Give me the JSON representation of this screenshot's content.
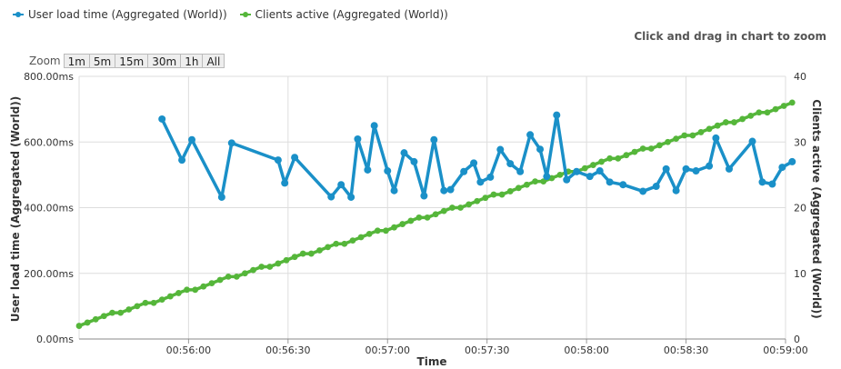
{
  "legend": {
    "series1": "User load time (Aggregated (World))",
    "series2": "Clients active (Aggregated (World))"
  },
  "hint": "Click and drag in chart to zoom",
  "zoom": {
    "label": "Zoom",
    "buttons": [
      "1m",
      "5m",
      "15m",
      "30m",
      "1h",
      "All"
    ]
  },
  "colors": {
    "series1": "#1a90c8",
    "series2": "#55b63a",
    "grid": "#dddddd"
  },
  "chart_data": {
    "type": "line",
    "xlabel": "Time",
    "ylabel_left": "User load time (Aggregated (World))",
    "ylabel_right": "Clients active (Aggregated (World))",
    "x_range": [
      "00:55:27",
      "00:59:00"
    ],
    "x_ticks": [
      "00:56:00",
      "00:56:30",
      "00:57:00",
      "00:57:30",
      "00:58:00",
      "00:58:30",
      "00:59:00"
    ],
    "y_left_ticks": [
      "0.00ms",
      "200.00ms",
      "400.00ms",
      "600.00ms",
      "800.00ms"
    ],
    "y_left_range": [
      0,
      800
    ],
    "y_right_ticks": [
      "0",
      "10",
      "20",
      "30",
      "40"
    ],
    "y_right_range": [
      0,
      40
    ],
    "grid": true,
    "series": [
      {
        "name": "User load time (Aggregated (World))",
        "axis": "left",
        "points": [
          [
            "00:55:52",
            670
          ],
          [
            "00:55:58",
            545
          ],
          [
            "00:56:01",
            607
          ],
          [
            "00:56:10",
            432
          ],
          [
            "00:56:13",
            597
          ],
          [
            "00:56:27",
            545
          ],
          [
            "00:56:29",
            475
          ],
          [
            "00:56:32",
            553
          ],
          [
            "00:56:43",
            433
          ],
          [
            "00:56:46",
            470
          ],
          [
            "00:56:49",
            432
          ],
          [
            "00:56:51",
            609
          ],
          [
            "00:56:54",
            515
          ],
          [
            "00:56:56",
            650
          ],
          [
            "00:57:00",
            512
          ],
          [
            "00:57:02",
            452
          ],
          [
            "00:57:05",
            567
          ],
          [
            "00:57:08",
            540
          ],
          [
            "00:57:11",
            436
          ],
          [
            "00:57:14",
            607
          ],
          [
            "00:57:17",
            452
          ],
          [
            "00:57:19",
            455
          ],
          [
            "00:57:23",
            510
          ],
          [
            "00:57:26",
            536
          ],
          [
            "00:57:28",
            478
          ],
          [
            "00:57:31",
            493
          ],
          [
            "00:57:34",
            577
          ],
          [
            "00:57:37",
            534
          ],
          [
            "00:57:40",
            510
          ],
          [
            "00:57:43",
            622
          ],
          [
            "00:57:46",
            578
          ],
          [
            "00:57:48",
            495
          ],
          [
            "00:57:51",
            682
          ],
          [
            "00:57:54",
            485
          ],
          [
            "00:57:57",
            510
          ],
          [
            "00:58:01",
            495
          ],
          [
            "00:58:04",
            512
          ],
          [
            "00:58:07",
            478
          ],
          [
            "00:58:11",
            470
          ],
          [
            "00:58:17",
            450
          ],
          [
            "00:58:21",
            465
          ],
          [
            "00:58:24",
            518
          ],
          [
            "00:58:27",
            452
          ],
          [
            "00:58:30",
            518
          ],
          [
            "00:58:33",
            512
          ],
          [
            "00:58:37",
            527
          ],
          [
            "00:58:39",
            612
          ],
          [
            "00:58:43",
            518
          ],
          [
            "00:58:50",
            602
          ],
          [
            "00:58:53",
            478
          ],
          [
            "00:58:56",
            472
          ],
          [
            "00:58:59",
            523
          ],
          [
            "00:59:02",
            540
          ]
        ]
      },
      {
        "name": "Clients active (Aggregated (World))",
        "axis": "right",
        "linear_from": [
          "00:55:27",
          2.2
        ],
        "linear_to": [
          "00:59:02",
          35.9
        ]
      }
    ]
  }
}
